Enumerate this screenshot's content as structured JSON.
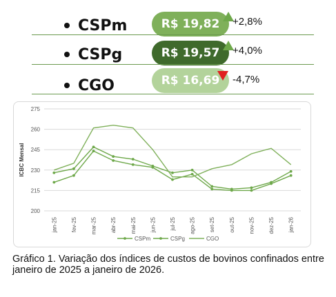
{
  "indicators": [
    {
      "name": "CSPm",
      "price": "R$ 19,82",
      "change": "+2,8%",
      "pill_color": "#7fb05a",
      "arrow": "up",
      "arrow_color": "#6ea84a"
    },
    {
      "name": "CSPg",
      "price": "R$ 19,57",
      "change": "+4,0%",
      "pill_color": "#3f6a2c",
      "arrow": "up",
      "arrow_color": "#6ea84a"
    },
    {
      "name": "CGO",
      "price": "R$ 16,69",
      "change": "-4,7%",
      "pill_color": "#b3d39b",
      "arrow": "down",
      "arrow_color": "#e02020"
    }
  ],
  "chart_data": {
    "type": "line",
    "ylabel": "ICBC Mensal",
    "ylim": [
      200,
      275
    ],
    "yticks": [
      200,
      215,
      230,
      245,
      260,
      275
    ],
    "categories": [
      "jan-25",
      "fev-25",
      "mar-25",
      "abr-25",
      "mai-25",
      "jun-25",
      "jul-25",
      "ago-25",
      "set-25",
      "out-25",
      "nov-25",
      "dez-25",
      "jan-26"
    ],
    "series": [
      {
        "name": "CSPm",
        "color": "#6ea84a",
        "marker": true,
        "values": [
          221,
          226,
          244,
          237,
          234,
          232,
          223,
          227,
          216,
          215,
          215,
          220,
          226
        ]
      },
      {
        "name": "CSPg",
        "color": "#6ea84a",
        "marker": true,
        "values": [
          228,
          231,
          247,
          240,
          238,
          233,
          228,
          230,
          218,
          216,
          217,
          221,
          229
        ]
      },
      {
        "name": "CGO",
        "color": "#7fb05a",
        "marker": false,
        "values": [
          230,
          235,
          261,
          263,
          261,
          245,
          225,
          225,
          231,
          234,
          242,
          246,
          234
        ]
      }
    ],
    "grid": true,
    "legend": "bottom"
  },
  "caption": "Gráfico 1. Variação dos índices de custos de bovinos confinados entre janeiro de 2025 a janeiro de 2026."
}
